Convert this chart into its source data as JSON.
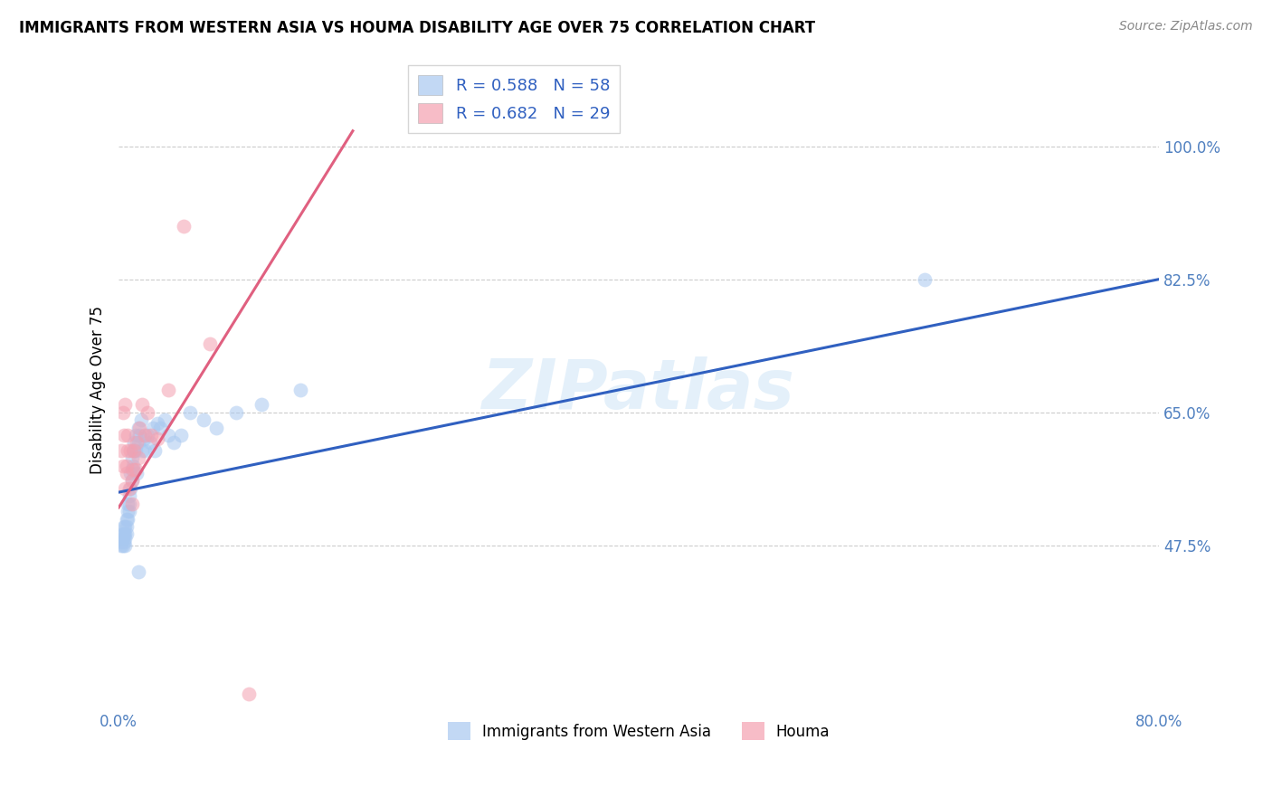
{
  "title": "IMMIGRANTS FROM WESTERN ASIA VS HOUMA DISABILITY AGE OVER 75 CORRELATION CHART",
  "source": "Source: ZipAtlas.com",
  "ylabel": "Disability Age Over 75",
  "legend_label_blue": "Immigrants from Western Asia",
  "legend_label_pink": "Houma",
  "R_blue": 0.588,
  "N_blue": 58,
  "R_pink": 0.682,
  "N_pink": 29,
  "xlim": [
    0.0,
    0.8
  ],
  "ylim": [
    0.26,
    1.1
  ],
  "yticks": [
    0.475,
    0.65,
    0.825,
    1.0
  ],
  "ytick_labels": [
    "47.5%",
    "65.0%",
    "82.5%",
    "100.0%"
  ],
  "xticks": [
    0.0,
    0.16,
    0.32,
    0.48,
    0.64,
    0.8
  ],
  "xtick_labels": [
    "0.0%",
    "",
    "",
    "",
    "",
    "80.0%"
  ],
  "color_blue": "#a8c8f0",
  "color_pink": "#f4a0b0",
  "line_color_blue": "#3060c0",
  "line_color_pink": "#e06080",
  "tick_color": "#5080c0",
  "watermark_text": "ZIPatlas",
  "blue_line_x": [
    0.0,
    0.8
  ],
  "blue_line_y": [
    0.545,
    0.825
  ],
  "pink_line_x": [
    0.0,
    0.18
  ],
  "pink_line_y": [
    0.525,
    1.02
  ],
  "blue_scatter_x": [
    0.002,
    0.002,
    0.003,
    0.003,
    0.003,
    0.004,
    0.004,
    0.004,
    0.005,
    0.005,
    0.005,
    0.005,
    0.006,
    0.006,
    0.006,
    0.007,
    0.007,
    0.007,
    0.008,
    0.008,
    0.008,
    0.009,
    0.009,
    0.01,
    0.01,
    0.01,
    0.011,
    0.011,
    0.012,
    0.012,
    0.013,
    0.013,
    0.014,
    0.015,
    0.015,
    0.016,
    0.017,
    0.018,
    0.019,
    0.02,
    0.022,
    0.024,
    0.026,
    0.028,
    0.03,
    0.032,
    0.035,
    0.038,
    0.042,
    0.048,
    0.055,
    0.065,
    0.075,
    0.09,
    0.11,
    0.14,
    0.62,
    0.015
  ],
  "blue_scatter_y": [
    0.475,
    0.48,
    0.49,
    0.475,
    0.485,
    0.48,
    0.49,
    0.5,
    0.475,
    0.485,
    0.49,
    0.5,
    0.5,
    0.51,
    0.49,
    0.52,
    0.51,
    0.53,
    0.52,
    0.54,
    0.53,
    0.55,
    0.57,
    0.56,
    0.575,
    0.59,
    0.6,
    0.58,
    0.61,
    0.6,
    0.62,
    0.6,
    0.57,
    0.63,
    0.61,
    0.62,
    0.64,
    0.6,
    0.615,
    0.6,
    0.62,
    0.61,
    0.63,
    0.6,
    0.635,
    0.63,
    0.64,
    0.62,
    0.61,
    0.62,
    0.65,
    0.64,
    0.63,
    0.65,
    0.66,
    0.68,
    0.825,
    0.44
  ],
  "pink_scatter_x": [
    0.002,
    0.003,
    0.003,
    0.004,
    0.005,
    0.005,
    0.006,
    0.006,
    0.007,
    0.007,
    0.008,
    0.009,
    0.01,
    0.01,
    0.011,
    0.012,
    0.013,
    0.014,
    0.015,
    0.016,
    0.018,
    0.02,
    0.022,
    0.025,
    0.03,
    0.038,
    0.05,
    0.07,
    0.1
  ],
  "pink_scatter_y": [
    0.6,
    0.58,
    0.65,
    0.62,
    0.55,
    0.66,
    0.58,
    0.57,
    0.6,
    0.62,
    0.55,
    0.6,
    0.56,
    0.53,
    0.575,
    0.6,
    0.575,
    0.61,
    0.59,
    0.63,
    0.66,
    0.62,
    0.65,
    0.62,
    0.615,
    0.68,
    0.895,
    0.74,
    0.28
  ]
}
